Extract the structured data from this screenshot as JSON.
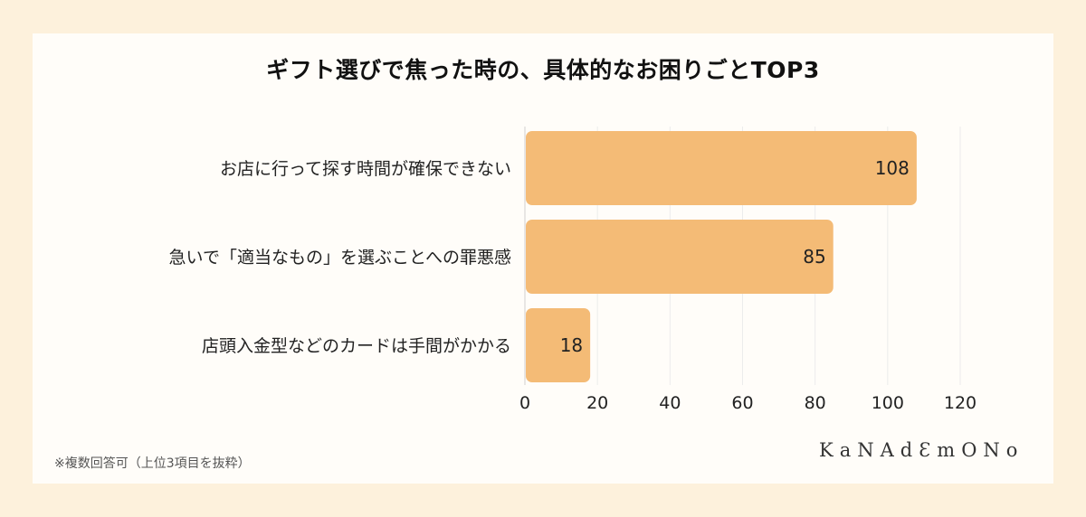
{
  "chart_data": {
    "type": "bar",
    "orientation": "horizontal",
    "title": "ギフト選びで焦った時の、具体的なお困りごとTOP3",
    "categories": [
      "お店に行って探す時間が確保できない",
      "急いで「適当なもの」を選ぶことへの罪悪感",
      "店頭入金型などのカードは手間がかかる"
    ],
    "values": [
      108,
      85,
      18
    ],
    "xlim": [
      0,
      120
    ],
    "xticks": [
      "0",
      "20",
      "40",
      "60",
      "80",
      "100",
      "120"
    ],
    "xlabel": "",
    "ylabel": "",
    "grid": "vertical",
    "bar_color": "#f4bb76"
  },
  "footnote": "※複数回答可（上位3項目を抜粋）",
  "brand": "KaNAdƐmONo"
}
